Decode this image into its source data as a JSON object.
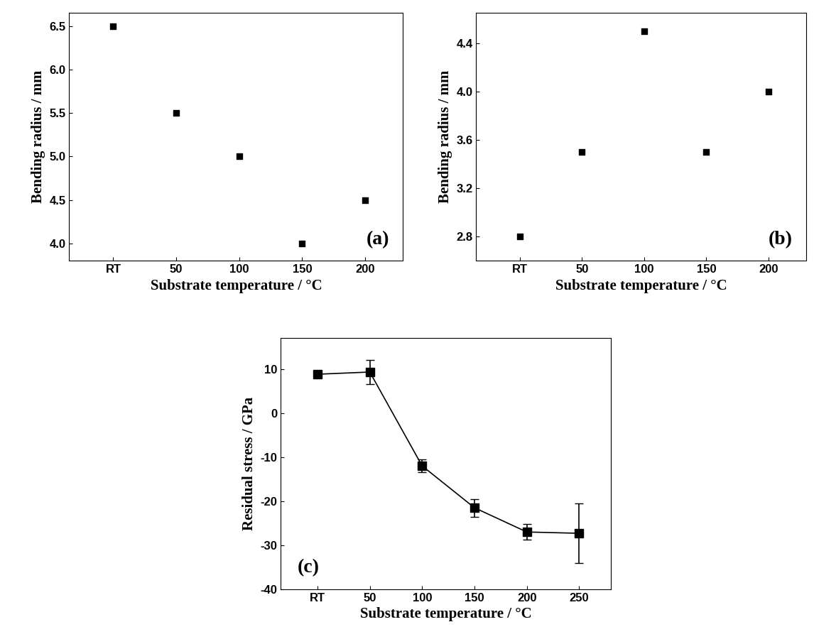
{
  "chart_data": [
    {
      "type": "scatter",
      "annotation": "(a)",
      "x_label": "Substrate temperature / °C",
      "y_label": "Bending radius / mm",
      "categories": [
        "RT",
        "50",
        "100",
        "150",
        "200"
      ],
      "values": [
        6.5,
        5.5,
        5.0,
        4.0,
        4.5
      ],
      "ylim": [
        3.8,
        6.65
      ],
      "yticks": [
        4.0,
        4.5,
        5.0,
        5.5,
        6.0,
        6.5
      ],
      "color": "#000000",
      "marker": "square"
    },
    {
      "type": "scatter",
      "annotation": "(b)",
      "x_label": "Substrate temperature / °C",
      "y_label": "Bending radius / mm",
      "categories": [
        "RT",
        "50",
        "100",
        "150",
        "200"
      ],
      "values": [
        2.8,
        3.5,
        4.5,
        3.5,
        4.0
      ],
      "ylim": [
        2.6,
        4.65
      ],
      "yticks": [
        2.8,
        3.2,
        3.6,
        4.0,
        4.4
      ],
      "color": "#000000",
      "marker": "square"
    },
    {
      "type": "line",
      "annotation": "(c)",
      "x_label": "Substrate temperature / °C",
      "y_label": "Residual stress / GPa",
      "categories": [
        "RT",
        "50",
        "100",
        "150",
        "200",
        "250"
      ],
      "values": [
        8.8,
        9.3,
        -12,
        -21.5,
        -27,
        -27.3
      ],
      "errors": [
        0,
        2.7,
        1.5,
        2,
        1.8,
        6.8
      ],
      "ylim": [
        -40,
        17
      ],
      "yticks": [
        -40,
        -30,
        -20,
        -10,
        0,
        10
      ],
      "color": "#000000",
      "marker": "square",
      "line_style": "solid"
    }
  ]
}
